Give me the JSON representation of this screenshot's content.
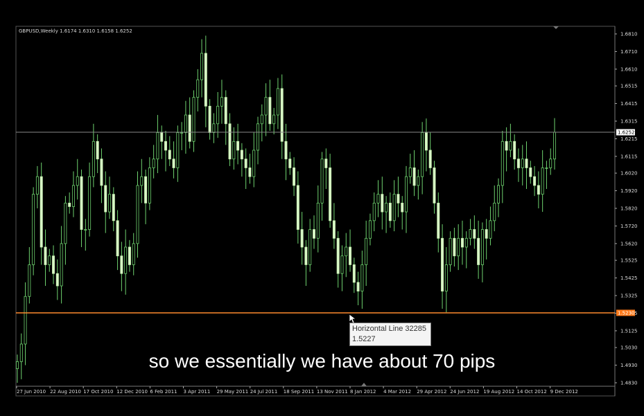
{
  "chart_data": {
    "type": "candlestick",
    "symbol_header": "GBPUSD,Weekly  1.6174 1.6310 1.6158 1.6252",
    "y_ticks": [
      "1.6810",
      "1.6710",
      "1.6610",
      "1.6515",
      "1.6415",
      "1.6315",
      "1.6215",
      "1.6115",
      "1.6020",
      "1.5920",
      "1.5820",
      "1.5720",
      "1.5620",
      "1.5525",
      "1.5425",
      "1.5325",
      "1.5225",
      "1.5125",
      "1.5030",
      "1.4930",
      "1.4830"
    ],
    "x_ticks": [
      "27 Jun 2010",
      "22 Aug 2010",
      "17 Oct 2010",
      "12 Dec 2010",
      "6 Feb 2011",
      "3 Apr 2011",
      "29 May 2011",
      "24 Jul 2011",
      "18 Sep 2011",
      "13 Nov 2011",
      "8 Jan 2012",
      "4 Mar 2012",
      "29 Apr 2012",
      "24 Jun 2012",
      "19 Aug 2012",
      "14 Oct 2012",
      "9 Dec 2012"
    ],
    "ylim": [
      1.483,
      1.681
    ],
    "current_price_label": "1.6252",
    "current_price": 1.6252,
    "horizontal_line_label": "1.5230",
    "horizontal_line_value": 1.5227,
    "closes": [
      1.495,
      1.505,
      1.532,
      1.55,
      1.59,
      1.6,
      1.56,
      1.55,
      1.555,
      1.545,
      1.538,
      1.562,
      1.585,
      1.583,
      1.595,
      1.6,
      1.57,
      1.57,
      1.6,
      1.62,
      1.61,
      1.595,
      1.58,
      1.59,
      1.575,
      1.555,
      1.545,
      1.56,
      1.55,
      1.562,
      1.595,
      1.6,
      1.585,
      1.605,
      1.61,
      1.625,
      1.62,
      1.615,
      1.61,
      1.605,
      1.625,
      1.625,
      1.635,
      1.62,
      1.645,
      1.655,
      1.67,
      1.64,
      1.625,
      1.63,
      1.64,
      1.645,
      1.63,
      1.61,
      1.62,
      1.615,
      1.61,
      1.605,
      1.6,
      1.615,
      1.63,
      1.635,
      1.645,
      1.63,
      1.635,
      1.65,
      1.62,
      1.61,
      1.605,
      1.595,
      1.57,
      1.56,
      1.55,
      1.57,
      1.565,
      1.585,
      1.61,
      1.605,
      1.575,
      1.565,
      1.545,
      1.555,
      1.56,
      1.55,
      1.54,
      1.535,
      1.55,
      1.565,
      1.575,
      1.585,
      1.59,
      1.58,
      1.585,
      1.575,
      1.59,
      1.585,
      1.58,
      1.6,
      1.605,
      1.595,
      1.6,
      1.625,
      1.615,
      1.605,
      1.585,
      1.565,
      1.535,
      1.55,
      1.565,
      1.555,
      1.565,
      1.56,
      1.565,
      1.57,
      1.565,
      1.55,
      1.57,
      1.565,
      1.575,
      1.585,
      1.595,
      1.62,
      1.615,
      1.62,
      1.61,
      1.605,
      1.61,
      1.605,
      1.6,
      1.595,
      1.59,
      1.605,
      1.605,
      1.61,
      1.6252
    ]
  }
}
